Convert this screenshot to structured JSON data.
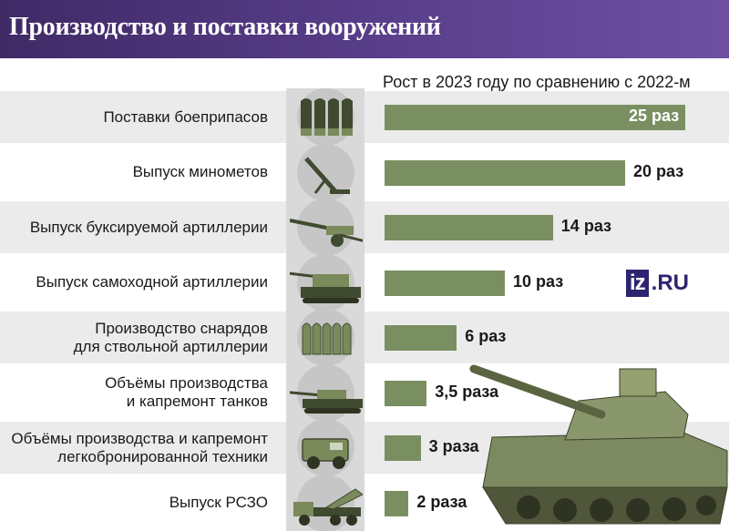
{
  "header": {
    "title": "Производство и поставки вооружений"
  },
  "subtitle": "Рост в 2023 году по сравнению с 2022-м",
  "logo": {
    "iz": "iz",
    "ru": ".RU"
  },
  "colors": {
    "header": "#4a3276",
    "bar": "#7a8f61",
    "row_shade": "#ebebeb",
    "icon_column": "#d9d9d9"
  },
  "chart_data": {
    "type": "bar",
    "orientation": "horizontal",
    "categories": [
      [
        "Поставки боеприпасов"
      ],
      [
        "Выпуск минометов"
      ],
      [
        "Выпуск буксируемой артиллерии"
      ],
      [
        "Выпуск самоходной артиллерии"
      ],
      [
        "Производство снарядов",
        "для ствольной артиллерии"
      ],
      [
        "Объёмы производства",
        "и капремонт танков"
      ],
      [
        "Объёмы производства и капремонт",
        "легкобронированной техники"
      ],
      [
        "Выпуск РСЗО"
      ]
    ],
    "values": [
      25,
      20,
      14,
      10,
      6,
      3.5,
      3,
      2
    ],
    "value_labels": [
      "25 раз",
      "20 раз",
      "14 раз",
      "10 раз",
      "6 раз",
      "3,5 раза",
      "3 раза",
      "2 раза"
    ],
    "icons": [
      "ammunition-icon",
      "mortar-icon",
      "towed-artillery-icon",
      "self-propelled-artillery-icon",
      "shells-icon",
      "tank-icon",
      "armored-vehicle-icon",
      "mlrs-icon"
    ],
    "title": "Рост в 2023 году по сравнению с 2022-м",
    "xlim": [
      0,
      25
    ],
    "grid": false,
    "legend": "none"
  }
}
